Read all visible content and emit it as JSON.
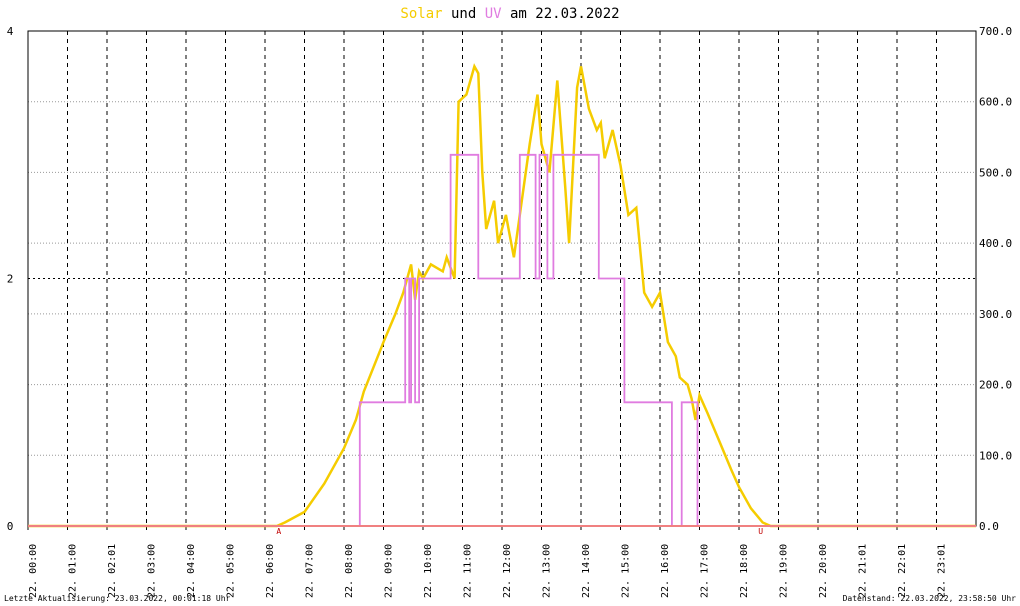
{
  "chart_data": {
    "type": "line",
    "title_parts": [
      "Solar",
      " und ",
      "UV",
      " am 22.03.2022"
    ],
    "footer_left": "Letzte Aktualisierung: 23.03.2022, 00:01:18 Uhr",
    "footer_right": "Datenstand: 22.03.2022, 23:58:50 Uhr",
    "xlim": [
      0,
      24
    ],
    "xticks": [
      {
        "value": 0,
        "label": "22. 00:00"
      },
      {
        "value": 1,
        "label": "22. 01:00"
      },
      {
        "value": 2,
        "label": "22. 02:01"
      },
      {
        "value": 3,
        "label": "22. 03:00"
      },
      {
        "value": 4,
        "label": "22. 04:00"
      },
      {
        "value": 5,
        "label": "22. 05:00"
      },
      {
        "value": 6,
        "label": "22. 06:00"
      },
      {
        "value": 7,
        "label": "22. 07:00"
      },
      {
        "value": 8,
        "label": "22. 08:00"
      },
      {
        "value": 9,
        "label": "22. 09:00"
      },
      {
        "value": 10,
        "label": "22. 10:00"
      },
      {
        "value": 11,
        "label": "22. 11:00"
      },
      {
        "value": 12,
        "label": "22. 12:00"
      },
      {
        "value": 13,
        "label": "22. 13:00"
      },
      {
        "value": 14,
        "label": "22. 14:00"
      },
      {
        "value": 15,
        "label": "22. 15:00"
      },
      {
        "value": 16,
        "label": "22. 16:00"
      },
      {
        "value": 17,
        "label": "22. 17:00"
      },
      {
        "value": 18,
        "label": "22. 18:00"
      },
      {
        "value": 19,
        "label": "22. 19:00"
      },
      {
        "value": 20,
        "label": "22. 20:00"
      },
      {
        "value": 21,
        "label": "22. 21:01"
      },
      {
        "value": 22,
        "label": "22. 22:01"
      },
      {
        "value": 23,
        "label": "22. 23:01"
      }
    ],
    "ylim": [
      0,
      4
    ],
    "yticks": [
      0,
      2,
      4
    ],
    "y2lim": [
      0,
      700
    ],
    "y2ticks": [
      {
        "value": 0,
        "label": "0.0"
      },
      {
        "value": 100,
        "label": "100.0"
      },
      {
        "value": 200,
        "label": "200.0"
      },
      {
        "value": 300,
        "label": "300.0"
      },
      {
        "value": 400,
        "label": "400.0"
      },
      {
        "value": 500,
        "label": "500.0"
      },
      {
        "value": 600,
        "label": "600.0"
      },
      {
        "value": 700,
        "label": "700.0"
      }
    ],
    "grid": true,
    "annotations": [
      {
        "text": "A",
        "x": 6.35
      },
      {
        "text": "U",
        "x": 18.55
      }
    ],
    "series": [
      {
        "name": "Solar",
        "color": "#f5cc00",
        "axis": "y2",
        "x": [
          0,
          6.3,
          6.5,
          7,
          7.5,
          8,
          8.3,
          8.5,
          9,
          9.3,
          9.5,
          9.7,
          9.8,
          9.9,
          10,
          10.2,
          10.5,
          10.6,
          10.8,
          10.9,
          11.1,
          11.3,
          11.4,
          11.5,
          11.6,
          11.8,
          11.9,
          12.1,
          12.3,
          12.5,
          12.7,
          12.9,
          13.0,
          13.2,
          13.4,
          13.6,
          13.7,
          13.9,
          14.0,
          14.2,
          14.4,
          14.5,
          14.6,
          14.8,
          15.0,
          15.2,
          15.4,
          15.6,
          15.8,
          16.0,
          16.2,
          16.4,
          16.5,
          16.7,
          16.8,
          16.9,
          17.0,
          17.2,
          17.5,
          17.8,
          18.0,
          18.3,
          18.6,
          18.8,
          24
        ],
        "values": [
          0,
          0,
          5,
          20,
          60,
          110,
          150,
          190,
          260,
          300,
          330,
          370,
          320,
          360,
          350,
          370,
          360,
          380,
          350,
          600,
          610,
          650,
          640,
          500,
          420,
          460,
          400,
          440,
          380,
          460,
          540,
          610,
          540,
          500,
          630,
          480,
          400,
          620,
          650,
          590,
          560,
          570,
          520,
          560,
          510,
          440,
          450,
          330,
          310,
          330,
          260,
          240,
          210,
          200,
          180,
          150,
          185,
          160,
          120,
          80,
          55,
          25,
          5,
          0,
          0
        ]
      },
      {
        "name": "UV",
        "color": "#e07ce0",
        "axis": "y",
        "x": [
          0,
          8.4,
          8.4,
          9.55,
          9.55,
          9.65,
          9.65,
          9.7,
          9.7,
          9.8,
          9.8,
          9.9,
          9.9,
          10.7,
          10.7,
          11.4,
          11.4,
          12.45,
          12.45,
          12.85,
          12.85,
          12.95,
          12.95,
          13.15,
          13.15,
          13.3,
          13.3,
          14.45,
          14.45,
          15.1,
          15.1,
          16.3,
          16.3,
          16.55,
          16.55,
          16.95,
          16.95,
          24
        ],
        "values": [
          0,
          0,
          1,
          1,
          2,
          2,
          1,
          1,
          2,
          2,
          1,
          1,
          2,
          2,
          3,
          3,
          2,
          2,
          3,
          3,
          2,
          2,
          3,
          3,
          2,
          2,
          3,
          3,
          2,
          2,
          1,
          1,
          0,
          0,
          1,
          1,
          0,
          0
        ]
      }
    ]
  }
}
